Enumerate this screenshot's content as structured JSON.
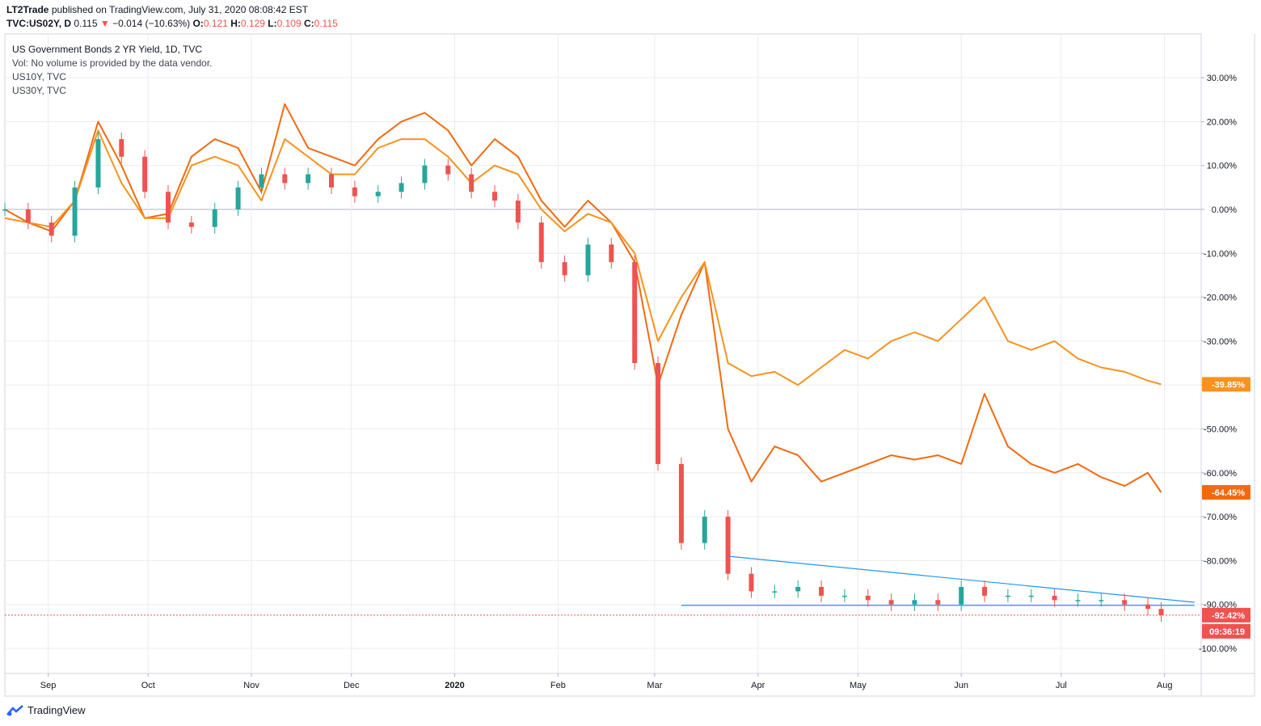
{
  "header": {
    "publisher": "LT2Trade",
    "published_text": "published on TradingView.com, July 31, 2020 08:08:42 EST",
    "symbol": "TVC:US02Y, D",
    "last": "0.115",
    "arrow": "▼",
    "change": "−0.014 (−10.63%)",
    "o_label": "O:",
    "o_value": "0.121",
    "h_label": "H:",
    "h_value": "0.129",
    "l_label": "L:",
    "l_value": "0.109",
    "c_label": "C:",
    "c_value": "0.115"
  },
  "legend": {
    "main": "US Government Bonds 2 YR Yield, 1D, TVC",
    "vol": "Vol: No volume is provided by the data vendor.",
    "s1": "US10Y, TVC",
    "s2": "US30Y, TVC"
  },
  "brand": "TradingView",
  "colors": {
    "up": "#26a69a",
    "down": "#ef5350",
    "us10y": "#f26a10",
    "us30y": "#f7931e",
    "trendline": "#2196f3",
    "grid": "#e8ecf0"
  },
  "chart_data": {
    "type": "line",
    "title": "US Government Bonds 2 YR Yield, 1D, TVC",
    "y_scale": "percent change",
    "ylim": [
      -105,
      35
    ],
    "y_ticks": [
      "30.00%",
      "20.00%",
      "10.00%",
      "0.00%",
      "-10.00%",
      "-20.00%",
      "-30.00%",
      "-40.00%",
      "-50.00%",
      "-60.00%",
      "-70.00%",
      "-80.00%",
      "-90.00%",
      "-100.00%"
    ],
    "x_ticks": [
      "Sep",
      "Oct",
      "Nov",
      "Dec",
      "2020",
      "Feb",
      "Mar",
      "Apr",
      "May",
      "Jun",
      "Jul",
      "Aug"
    ],
    "x_dates": [
      "2019-08-19",
      "2019-08-26",
      "2019-09-02",
      "2019-09-09",
      "2019-09-16",
      "2019-09-23",
      "2019-09-30",
      "2019-10-07",
      "2019-10-14",
      "2019-10-21",
      "2019-10-28",
      "2019-11-04",
      "2019-11-11",
      "2019-11-18",
      "2019-11-25",
      "2019-12-02",
      "2019-12-09",
      "2019-12-16",
      "2019-12-23",
      "2019-12-30",
      "2020-01-06",
      "2020-01-13",
      "2020-01-20",
      "2020-01-27",
      "2020-02-03",
      "2020-02-10",
      "2020-02-17",
      "2020-02-24",
      "2020-03-02",
      "2020-03-09",
      "2020-03-16",
      "2020-03-23",
      "2020-03-30",
      "2020-04-06",
      "2020-04-13",
      "2020-04-20",
      "2020-04-27",
      "2020-05-04",
      "2020-05-11",
      "2020-05-18",
      "2020-05-25",
      "2020-06-01",
      "2020-06-08",
      "2020-06-15",
      "2020-06-22",
      "2020-06-29",
      "2020-07-06",
      "2020-07-13",
      "2020-07-20",
      "2020-07-27",
      "2020-07-31"
    ],
    "grid": true,
    "legend": "top-left",
    "series": [
      {
        "name": "US02Y",
        "style": "candles",
        "values": [
          0,
          -3,
          -6,
          5,
          16,
          12,
          4,
          -3,
          -4,
          0,
          5,
          8,
          6,
          8,
          5,
          3,
          4,
          6,
          10,
          8,
          4,
          2,
          -3,
          -12,
          -15,
          -8,
          -12,
          -35,
          -58,
          -76,
          -70,
          -83,
          -87,
          -87,
          -86,
          -88,
          -88,
          -89,
          -90,
          -89,
          -90,
          -86,
          -88,
          -88,
          -88,
          -89,
          -89,
          -89,
          -90,
          -91,
          -92.42
        ]
      },
      {
        "name": "US10Y",
        "values": [
          0,
          -3,
          -5,
          2,
          20,
          10,
          -2,
          -1,
          12,
          16,
          14,
          4,
          24,
          14,
          12,
          10,
          16,
          20,
          22,
          18,
          10,
          16,
          12,
          2,
          -4,
          2,
          -3,
          -12,
          -40,
          -24,
          -12,
          -50,
          -62,
          -54,
          -56,
          -62,
          -60,
          -58,
          -56,
          -57,
          -56,
          -58,
          -42,
          -54,
          -58,
          -60,
          -58,
          -61,
          -63,
          -60,
          -64.45
        ]
      },
      {
        "name": "US30Y",
        "values": [
          -2,
          -3,
          -4,
          2,
          18,
          6,
          -2,
          -2,
          10,
          12,
          10,
          2,
          16,
          12,
          8,
          8,
          14,
          16,
          16,
          12,
          6,
          10,
          8,
          0,
          -5,
          -1,
          -3,
          -10,
          -30,
          -20,
          -12,
          -35,
          -38,
          -37,
          -40,
          -36,
          -32,
          -34,
          -30,
          -28,
          -30,
          -25,
          -20,
          -30,
          -32,
          -30,
          -34,
          -36,
          -37,
          -39,
          -39.85
        ]
      }
    ],
    "trendlines": [
      {
        "from": [
          "2020-03-23",
          -79
        ],
        "to": [
          "2020-08-10",
          -89.5
        ]
      },
      {
        "from": [
          "2020-03-09",
          -90.2
        ],
        "to": [
          "2020-08-10",
          -90.2
        ]
      }
    ],
    "last_price_labels": [
      "-39.85%",
      "-64.45%",
      "-92.42%"
    ],
    "countdown": "09:36:19"
  }
}
